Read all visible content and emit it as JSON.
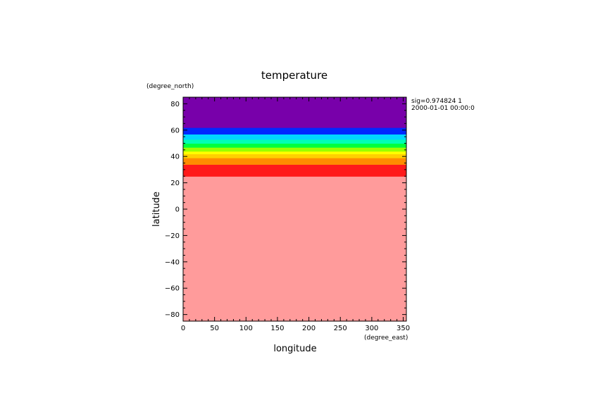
{
  "chart_data": {
    "type": "heatmap",
    "title": "temperature",
    "xlabel": "longitude",
    "ylabel": "latitude",
    "x_units": "(degree_east)",
    "y_units": "(degree_north)",
    "annotations": [
      "sig=0.974824 1",
      "2000-01-01 00:00:0"
    ],
    "xlim": [
      0,
      355
    ],
    "ylim": [
      -85,
      85
    ],
    "x_ticks": [
      0,
      50,
      100,
      150,
      200,
      250,
      300,
      350
    ],
    "y_ticks": [
      -80,
      -60,
      -40,
      -20,
      0,
      20,
      40,
      60,
      80
    ],
    "y_tick_labels": [
      "−80",
      "−60",
      "−40",
      "−20",
      "0",
      "20",
      "40",
      "60",
      "80"
    ],
    "grid": false,
    "bands": [
      {
        "lat_from": -85,
        "lat_to": 25,
        "color": "#ff9b9b"
      },
      {
        "lat_from": 25,
        "lat_to": 34,
        "color": "#ff1a1a"
      },
      {
        "lat_from": 34,
        "lat_to": 39,
        "color": "#ff8c00"
      },
      {
        "lat_from": 39,
        "lat_to": 42,
        "color": "#ffd000"
      },
      {
        "lat_from": 42,
        "lat_to": 44,
        "color": "#ffff00"
      },
      {
        "lat_from": 44,
        "lat_to": 47,
        "color": "#9bff00"
      },
      {
        "lat_from": 47,
        "lat_to": 50,
        "color": "#00ff3c"
      },
      {
        "lat_from": 50,
        "lat_to": 53,
        "color": "#00ffb4"
      },
      {
        "lat_from": 53,
        "lat_to": 57,
        "color": "#00d7ff"
      },
      {
        "lat_from": 57,
        "lat_to": 62,
        "color": "#0028ff"
      },
      {
        "lat_from": 62,
        "lat_to": 85,
        "color": "#7800aa"
      }
    ]
  }
}
